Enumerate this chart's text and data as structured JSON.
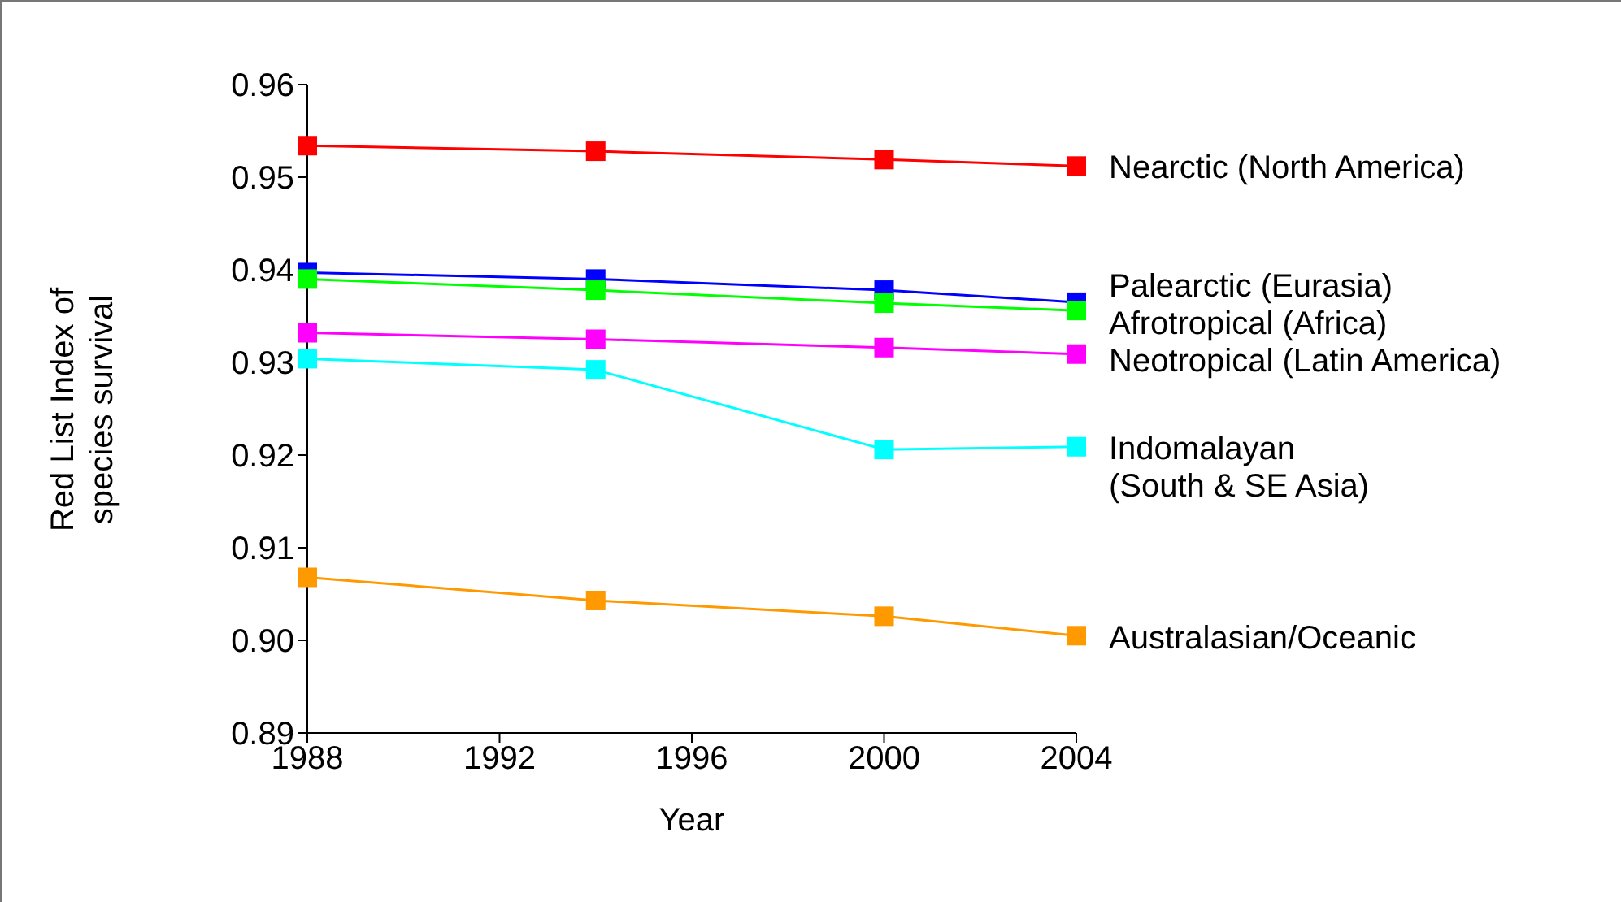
{
  "chart_data": {
    "type": "line",
    "xlabel": "Year",
    "ylabel": "Red List Index of\nspecies survival",
    "x": [
      1988,
      1994,
      2000,
      2004
    ],
    "xlim": [
      1988,
      2004
    ],
    "xticks": [
      1988,
      1992,
      1996,
      2000,
      2004
    ],
    "ylim": [
      0.89,
      0.96
    ],
    "yticks": [
      {
        "value": 0.89,
        "label": "0.89"
      },
      {
        "value": 0.9,
        "label": "0.90"
      },
      {
        "value": 0.91,
        "label": "0.91"
      },
      {
        "value": 0.92,
        "label": "0.92"
      },
      {
        "value": 0.93,
        "label": "0.93"
      },
      {
        "value": 0.94,
        "label": "0.94"
      },
      {
        "value": 0.95,
        "label": "0.95"
      },
      {
        "value": 0.96,
        "label": "0.96"
      }
    ],
    "grid": false,
    "legend": false,
    "marker": "square",
    "line_style": "solid",
    "series": [
      {
        "name": "Nearctic (North America)",
        "color": "#ff0000",
        "values": [
          0.9534,
          0.9528,
          0.9519,
          0.9512
        ]
      },
      {
        "name": "Palearctic (Eurasia)",
        "color": "#0000ff",
        "values": [
          0.9397,
          0.939,
          0.9378,
          0.9365
        ]
      },
      {
        "name": "Afrotropical (Africa)",
        "color": "#00ff00",
        "values": [
          0.939,
          0.9378,
          0.9364,
          0.9356
        ]
      },
      {
        "name": "Neotropical (Latin America)",
        "color": "#ff00ff",
        "values": [
          0.9332,
          0.9325,
          0.9316,
          0.9309
        ]
      },
      {
        "name": "Indomalayan\n(South & SE Asia)",
        "color": "#00ffff",
        "values": [
          0.9304,
          0.9292,
          0.9206,
          0.9209
        ]
      },
      {
        "name": "Australasian/Oceanic",
        "color": "#ff9900",
        "values": [
          0.9068,
          0.9043,
          0.9026,
          0.9005
        ]
      }
    ]
  }
}
